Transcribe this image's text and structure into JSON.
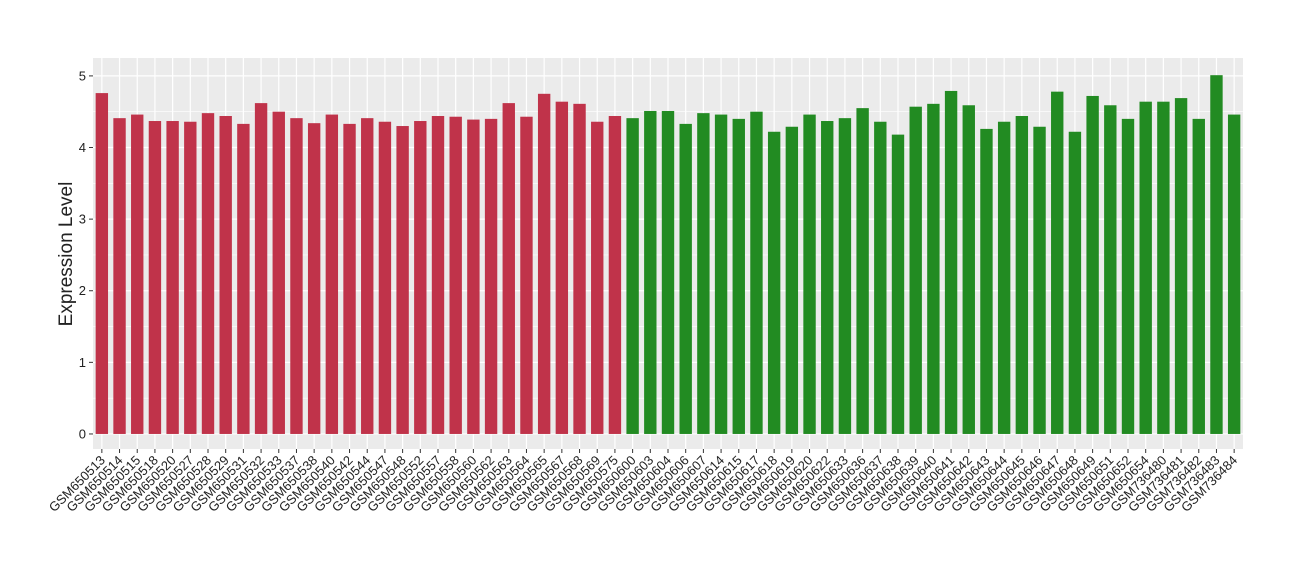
{
  "chart_data": {
    "type": "bar",
    "y_label": "Expression Level",
    "categories": [
      "GSM650513",
      "GSM650514",
      "GSM650515",
      "GSM650518",
      "GSM650520",
      "GSM650527",
      "GSM650528",
      "GSM650529",
      "GSM650531",
      "GSM650532",
      "GSM650533",
      "GSM650537",
      "GSM650538",
      "GSM650540",
      "GSM650542",
      "GSM650544",
      "GSM650547",
      "GSM650548",
      "GSM650552",
      "GSM650557",
      "GSM650558",
      "GSM650560",
      "GSM650562",
      "GSM650563",
      "GSM650564",
      "GSM650565",
      "GSM650567",
      "GSM650568",
      "GSM650569",
      "GSM650575",
      "GSM650600",
      "GSM650603",
      "GSM650604",
      "GSM650606",
      "GSM650607",
      "GSM650614",
      "GSM650615",
      "GSM650617",
      "GSM650618",
      "GSM650619",
      "GSM650620",
      "GSM650622",
      "GSM650633",
      "GSM650636",
      "GSM650637",
      "GSM650638",
      "GSM650639",
      "GSM650640",
      "GSM650641",
      "GSM650642",
      "GSM650643",
      "GSM650644",
      "GSM650645",
      "GSM650646",
      "GSM650647",
      "GSM650648",
      "GSM650649",
      "GSM650651",
      "GSM650652",
      "GSM650654",
      "GSM736480",
      "GSM736481",
      "GSM736482",
      "GSM736483",
      "GSM736484"
    ],
    "values": [
      4.76,
      4.41,
      4.46,
      4.37,
      4.37,
      4.36,
      4.48,
      4.44,
      4.33,
      4.62,
      4.5,
      4.41,
      4.34,
      4.46,
      4.33,
      4.41,
      4.36,
      4.3,
      4.37,
      4.44,
      4.43,
      4.39,
      4.4,
      4.62,
      4.43,
      4.75,
      4.64,
      4.61,
      4.36,
      4.44,
      4.41,
      4.51,
      4.51,
      4.33,
      4.48,
      4.46,
      4.4,
      4.5,
      4.22,
      4.29,
      4.46,
      4.37,
      4.41,
      4.55,
      4.36,
      4.18,
      4.57,
      4.61,
      4.79,
      4.59,
      4.26,
      4.36,
      4.44,
      4.29,
      4.78,
      4.22,
      4.72,
      4.59,
      4.4,
      4.64,
      4.64,
      4.69,
      4.4,
      5.01,
      4.46
    ],
    "colors": [
      "#c0334a",
      "#c0334a",
      "#c0334a",
      "#c0334a",
      "#c0334a",
      "#c0334a",
      "#c0334a",
      "#c0334a",
      "#c0334a",
      "#c0334a",
      "#c0334a",
      "#c0334a",
      "#c0334a",
      "#c0334a",
      "#c0334a",
      "#c0334a",
      "#c0334a",
      "#c0334a",
      "#c0334a",
      "#c0334a",
      "#c0334a",
      "#c0334a",
      "#c0334a",
      "#c0334a",
      "#c0334a",
      "#c0334a",
      "#c0334a",
      "#c0334a",
      "#c0334a",
      "#c0334a",
      "#228b22",
      "#228b22",
      "#228b22",
      "#228b22",
      "#228b22",
      "#228b22",
      "#228b22",
      "#228b22",
      "#228b22",
      "#228b22",
      "#228b22",
      "#228b22",
      "#228b22",
      "#228b22",
      "#228b22",
      "#228b22",
      "#228b22",
      "#228b22",
      "#228b22",
      "#228b22",
      "#228b22",
      "#228b22",
      "#228b22",
      "#228b22",
      "#228b22",
      "#228b22",
      "#228b22",
      "#228b22",
      "#228b22",
      "#228b22",
      "#228b22",
      "#228b22",
      "#228b22",
      "#228b22",
      "#228b22"
    ],
    "ylim": [
      -0.21,
      5.25
    ],
    "yticks": [
      0,
      1,
      2,
      3,
      4,
      5
    ],
    "grid": true
  }
}
